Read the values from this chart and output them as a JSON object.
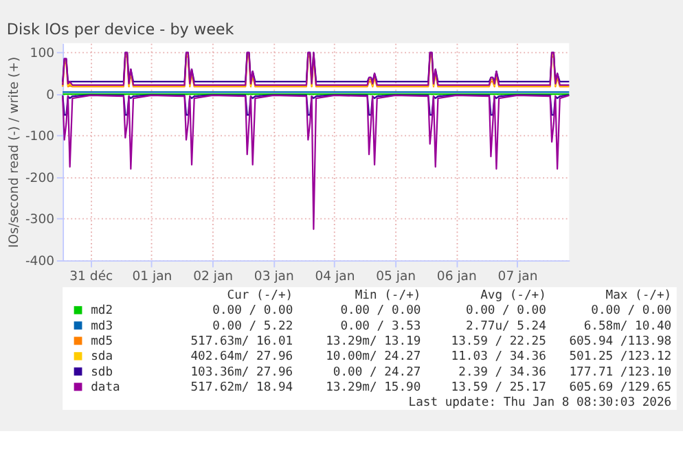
{
  "chart_data": {
    "type": "line",
    "title": "Disk IOs per device - by week",
    "ylabel": "IOs/second read (-) / write (+)",
    "xlim": [
      "2025-12-31T01:00",
      "2026-01-08T08:30"
    ],
    "ylim": [
      -400,
      123
    ],
    "xticks": [
      {
        "value": "2025-12-31T12:00",
        "label": "31 déc"
      },
      {
        "value": "2026-01-01T12:00",
        "label": "01 jan"
      },
      {
        "value": "2026-01-02T12:00",
        "label": "02 jan"
      },
      {
        "value": "2026-01-03T12:00",
        "label": "03 jan"
      },
      {
        "value": "2026-01-04T12:00",
        "label": "04 jan"
      },
      {
        "value": "2026-01-05T12:00",
        "label": "05 jan"
      },
      {
        "value": "2026-01-06T12:00",
        "label": "06 jan"
      },
      {
        "value": "2026-01-07T12:00",
        "label": "07 jan"
      }
    ],
    "yticks": [
      -400,
      -300,
      -200,
      -100,
      0,
      100
    ],
    "grid": true,
    "legend": "bottom",
    "marker": "none",
    "line_style": "solid",
    "x": [
      "2025-12-31T01:00",
      "2025-12-31T01:40",
      "2025-12-31T02:25",
      "2025-12-31T03:05",
      "2025-12-31T03:50",
      "2025-12-31T04:50",
      "2025-12-31T12:00",
      "2026-01-01T01:00",
      "2026-01-01T01:40",
      "2026-01-01T02:25",
      "2026-01-01T03:05",
      "2026-01-01T03:50",
      "2026-01-01T04:50",
      "2026-01-01T12:00",
      "2026-01-02T01:00",
      "2026-01-02T01:40",
      "2026-01-02T02:25",
      "2026-01-02T03:05",
      "2026-01-02T03:50",
      "2026-01-02T04:50",
      "2026-01-02T12:00",
      "2026-01-03T01:00",
      "2026-01-03T01:40",
      "2026-01-03T02:25",
      "2026-01-03T03:05",
      "2026-01-03T03:50",
      "2026-01-03T04:50",
      "2026-01-03T12:00",
      "2026-01-04T01:00",
      "2026-01-04T01:40",
      "2026-01-04T02:25",
      "2026-01-04T03:05",
      "2026-01-04T03:50",
      "2026-01-04T04:50",
      "2026-01-04T12:00",
      "2026-01-05T01:00",
      "2026-01-05T01:40",
      "2026-01-05T02:25",
      "2026-01-05T03:05",
      "2026-01-05T03:50",
      "2026-01-05T04:50",
      "2026-01-05T12:00",
      "2026-01-06T01:00",
      "2026-01-06T01:40",
      "2026-01-06T02:25",
      "2026-01-06T03:05",
      "2026-01-06T03:50",
      "2026-01-06T04:50",
      "2026-01-06T12:00",
      "2026-01-07T01:00",
      "2026-01-07T01:40",
      "2026-01-07T02:25",
      "2026-01-07T03:05",
      "2026-01-07T03:50",
      "2026-01-07T04:50",
      "2026-01-07T12:00",
      "2026-01-08T01:00",
      "2026-01-08T01:40",
      "2026-01-08T02:25",
      "2026-01-08T03:05",
      "2026-01-08T03:50",
      "2026-01-08T04:50",
      "2026-01-08T08:30"
    ],
    "series": [
      {
        "name": "md2",
        "color": "#00cc00",
        "values": [
          0,
          0,
          0,
          0,
          0,
          0,
          0,
          0,
          0,
          0,
          0,
          0,
          0,
          0,
          0,
          0,
          0,
          0,
          0,
          0,
          0,
          0,
          0,
          0,
          0,
          0,
          0,
          0,
          0,
          0,
          0,
          0,
          0,
          0,
          0,
          0,
          0,
          0,
          0,
          0,
          0,
          0,
          0,
          0,
          0,
          0,
          0,
          0,
          0,
          0,
          0,
          0,
          0,
          0,
          0,
          0,
          0,
          0,
          0,
          0,
          0,
          0,
          0
        ]
      },
      {
        "name": "md3",
        "color": "#0066b3",
        "values": [
          5,
          5,
          5,
          5,
          5,
          5,
          5,
          5,
          5,
          5,
          5,
          5,
          5,
          5,
          5,
          5,
          5,
          5,
          5,
          5,
          5,
          5,
          5,
          5,
          5,
          5,
          5,
          5,
          5,
          5,
          5,
          5,
          5,
          5,
          5,
          5,
          5,
          5,
          5,
          5,
          5,
          5,
          5,
          5,
          5,
          5,
          5,
          5,
          5,
          5,
          5,
          5,
          5,
          5,
          5,
          5,
          5,
          5,
          5,
          5,
          5,
          5,
          5
        ]
      },
      {
        "name": "md5",
        "color": "#ff8000",
        "values": [
          18,
          75,
          75,
          18,
          20,
          18,
          18,
          18,
          90,
          90,
          18,
          50,
          18,
          18,
          18,
          90,
          90,
          18,
          50,
          18,
          18,
          18,
          90,
          90,
          18,
          45,
          18,
          18,
          18,
          90,
          90,
          18,
          90,
          18,
          18,
          18,
          30,
          30,
          18,
          40,
          18,
          18,
          18,
          90,
          90,
          18,
          50,
          18,
          18,
          18,
          30,
          30,
          18,
          45,
          18,
          18,
          18,
          90,
          90,
          18,
          40,
          18,
          18
        ]
      },
      {
        "name": "sda",
        "color": "#ffcc00",
        "values": [
          20,
          80,
          80,
          20,
          25,
          20,
          20,
          20,
          95,
          95,
          20,
          55,
          20,
          20,
          20,
          95,
          95,
          20,
          55,
          20,
          20,
          20,
          95,
          95,
          20,
          50,
          20,
          20,
          20,
          95,
          95,
          20,
          95,
          20,
          20,
          20,
          35,
          35,
          20,
          45,
          20,
          20,
          20,
          95,
          95,
          20,
          55,
          20,
          20,
          20,
          35,
          35,
          20,
          50,
          20,
          20,
          20,
          95,
          95,
          20,
          45,
          20,
          20
        ]
      },
      {
        "name": "sdb",
        "color": "#330099",
        "values": [
          30,
          85,
          85,
          30,
          30,
          30,
          30,
          30,
          100,
          100,
          30,
          60,
          30,
          30,
          30,
          100,
          100,
          30,
          60,
          30,
          30,
          30,
          100,
          100,
          30,
          55,
          30,
          30,
          30,
          100,
          100,
          30,
          100,
          30,
          30,
          30,
          40,
          40,
          30,
          50,
          30,
          30,
          30,
          100,
          100,
          30,
          60,
          30,
          30,
          30,
          40,
          40,
          30,
          55,
          30,
          30,
          30,
          100,
          100,
          30,
          50,
          30,
          30
        ]
      },
      {
        "name": "data",
        "color": "#990099",
        "values": [
          22,
          85,
          85,
          25,
          30,
          22,
          22,
          22,
          100,
          100,
          25,
          60,
          22,
          22,
          22,
          100,
          100,
          25,
          60,
          22,
          22,
          22,
          100,
          100,
          25,
          55,
          22,
          22,
          22,
          100,
          100,
          25,
          100,
          22,
          22,
          22,
          40,
          40,
          25,
          50,
          22,
          22,
          22,
          100,
          100,
          25,
          60,
          22,
          22,
          22,
          40,
          40,
          25,
          55,
          22,
          22,
          22,
          100,
          100,
          25,
          50,
          22,
          22
        ]
      },
      {
        "color": "#330099",
        "values": [
          -3,
          -50,
          -50,
          -5,
          -10,
          -5,
          -2,
          -3,
          -50,
          -50,
          -5,
          -10,
          -5,
          -2,
          -3,
          -50,
          -50,
          -5,
          -10,
          -5,
          -2,
          -3,
          -50,
          -50,
          -5,
          -10,
          -5,
          -2,
          -3,
          -50,
          -50,
          -5,
          -10,
          -5,
          -2,
          -3,
          -50,
          -50,
          -5,
          -10,
          -5,
          -2,
          -3,
          -50,
          -50,
          -5,
          -10,
          -5,
          -2,
          -3,
          -50,
          -50,
          -5,
          -10,
          -5,
          -2,
          -3,
          -50,
          -50,
          -5,
          -10,
          -5,
          -2
        ]
      },
      {
        "color": "#990099",
        "values": [
          -5,
          -110,
          -70,
          -5,
          -175,
          -10,
          -3,
          -5,
          -105,
          -70,
          -5,
          -180,
          -10,
          -3,
          -5,
          -110,
          -70,
          -5,
          -170,
          -10,
          -3,
          -5,
          -145,
          -70,
          -5,
          -170,
          -10,
          -3,
          -5,
          -110,
          -70,
          -5,
          -325,
          -10,
          -3,
          -5,
          -145,
          -70,
          -5,
          -170,
          -10,
          -3,
          -5,
          -120,
          -70,
          -5,
          -175,
          -10,
          -3,
          -5,
          -150,
          -70,
          -5,
          -180,
          -10,
          -3,
          -5,
          -115,
          -70,
          -5,
          -180,
          -10,
          -3
        ]
      }
    ],
    "annotations": [
      "Cur (-/+)",
      "Min (-/+)",
      "Avg (-/+)",
      "Max (-/+)",
      "0.00 /  0.00",
      "0.00 /  0.00",
      "0.00 /  0.00",
      "0.00 /  0.00",
      "0.00 /  5.22",
      "0.00 /  3.53",
      "2.77u/  5.24",
      "6.58m/ 10.40",
      "517.63m/ 16.01",
      "13.29m/ 13.19",
      "13.59 / 22.25",
      "605.94 /113.98",
      "402.64m/ 27.96",
      "10.00m/ 24.27",
      "11.03 / 34.36",
      "501.25 /123.12",
      "103.36m/ 27.96",
      "0.00 / 24.27",
      "2.39 / 34.36",
      "177.71 /123.10",
      "517.62m/ 18.94",
      "13.29m/ 15.90",
      "13.59 / 25.17",
      "605.69 /129.65",
      "Last update: Thu Jan  8 08:30:03 2026"
    ]
  }
}
